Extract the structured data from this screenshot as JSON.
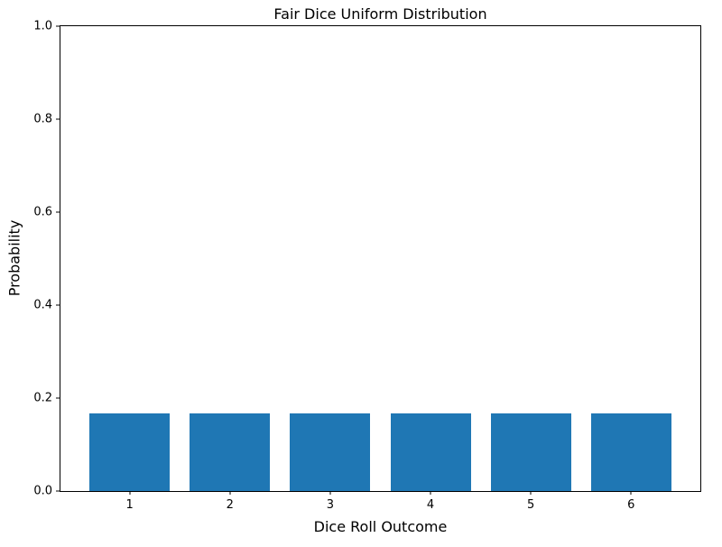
{
  "chart_data": {
    "type": "bar",
    "title": "Fair Dice Uniform Distribution",
    "xlabel": "Dice Roll Outcome",
    "ylabel": "Probability",
    "categories": [
      "1",
      "2",
      "3",
      "4",
      "5",
      "6"
    ],
    "values": [
      0.1667,
      0.1667,
      0.1667,
      0.1667,
      0.1667,
      0.1667
    ],
    "ylim": [
      0.0,
      1.0
    ],
    "yticks": [
      0.0,
      0.2,
      0.4,
      0.6,
      0.8,
      1.0
    ],
    "ytick_labels": [
      "0.0",
      "0.2",
      "0.4",
      "0.6",
      "0.8",
      "1.0"
    ],
    "xlim": [
      0.31,
      6.69
    ],
    "bar_width": 0.8,
    "bar_color": "#1f77b4",
    "axes_edge_color": "#000000",
    "grid": false,
    "legend": null
  }
}
